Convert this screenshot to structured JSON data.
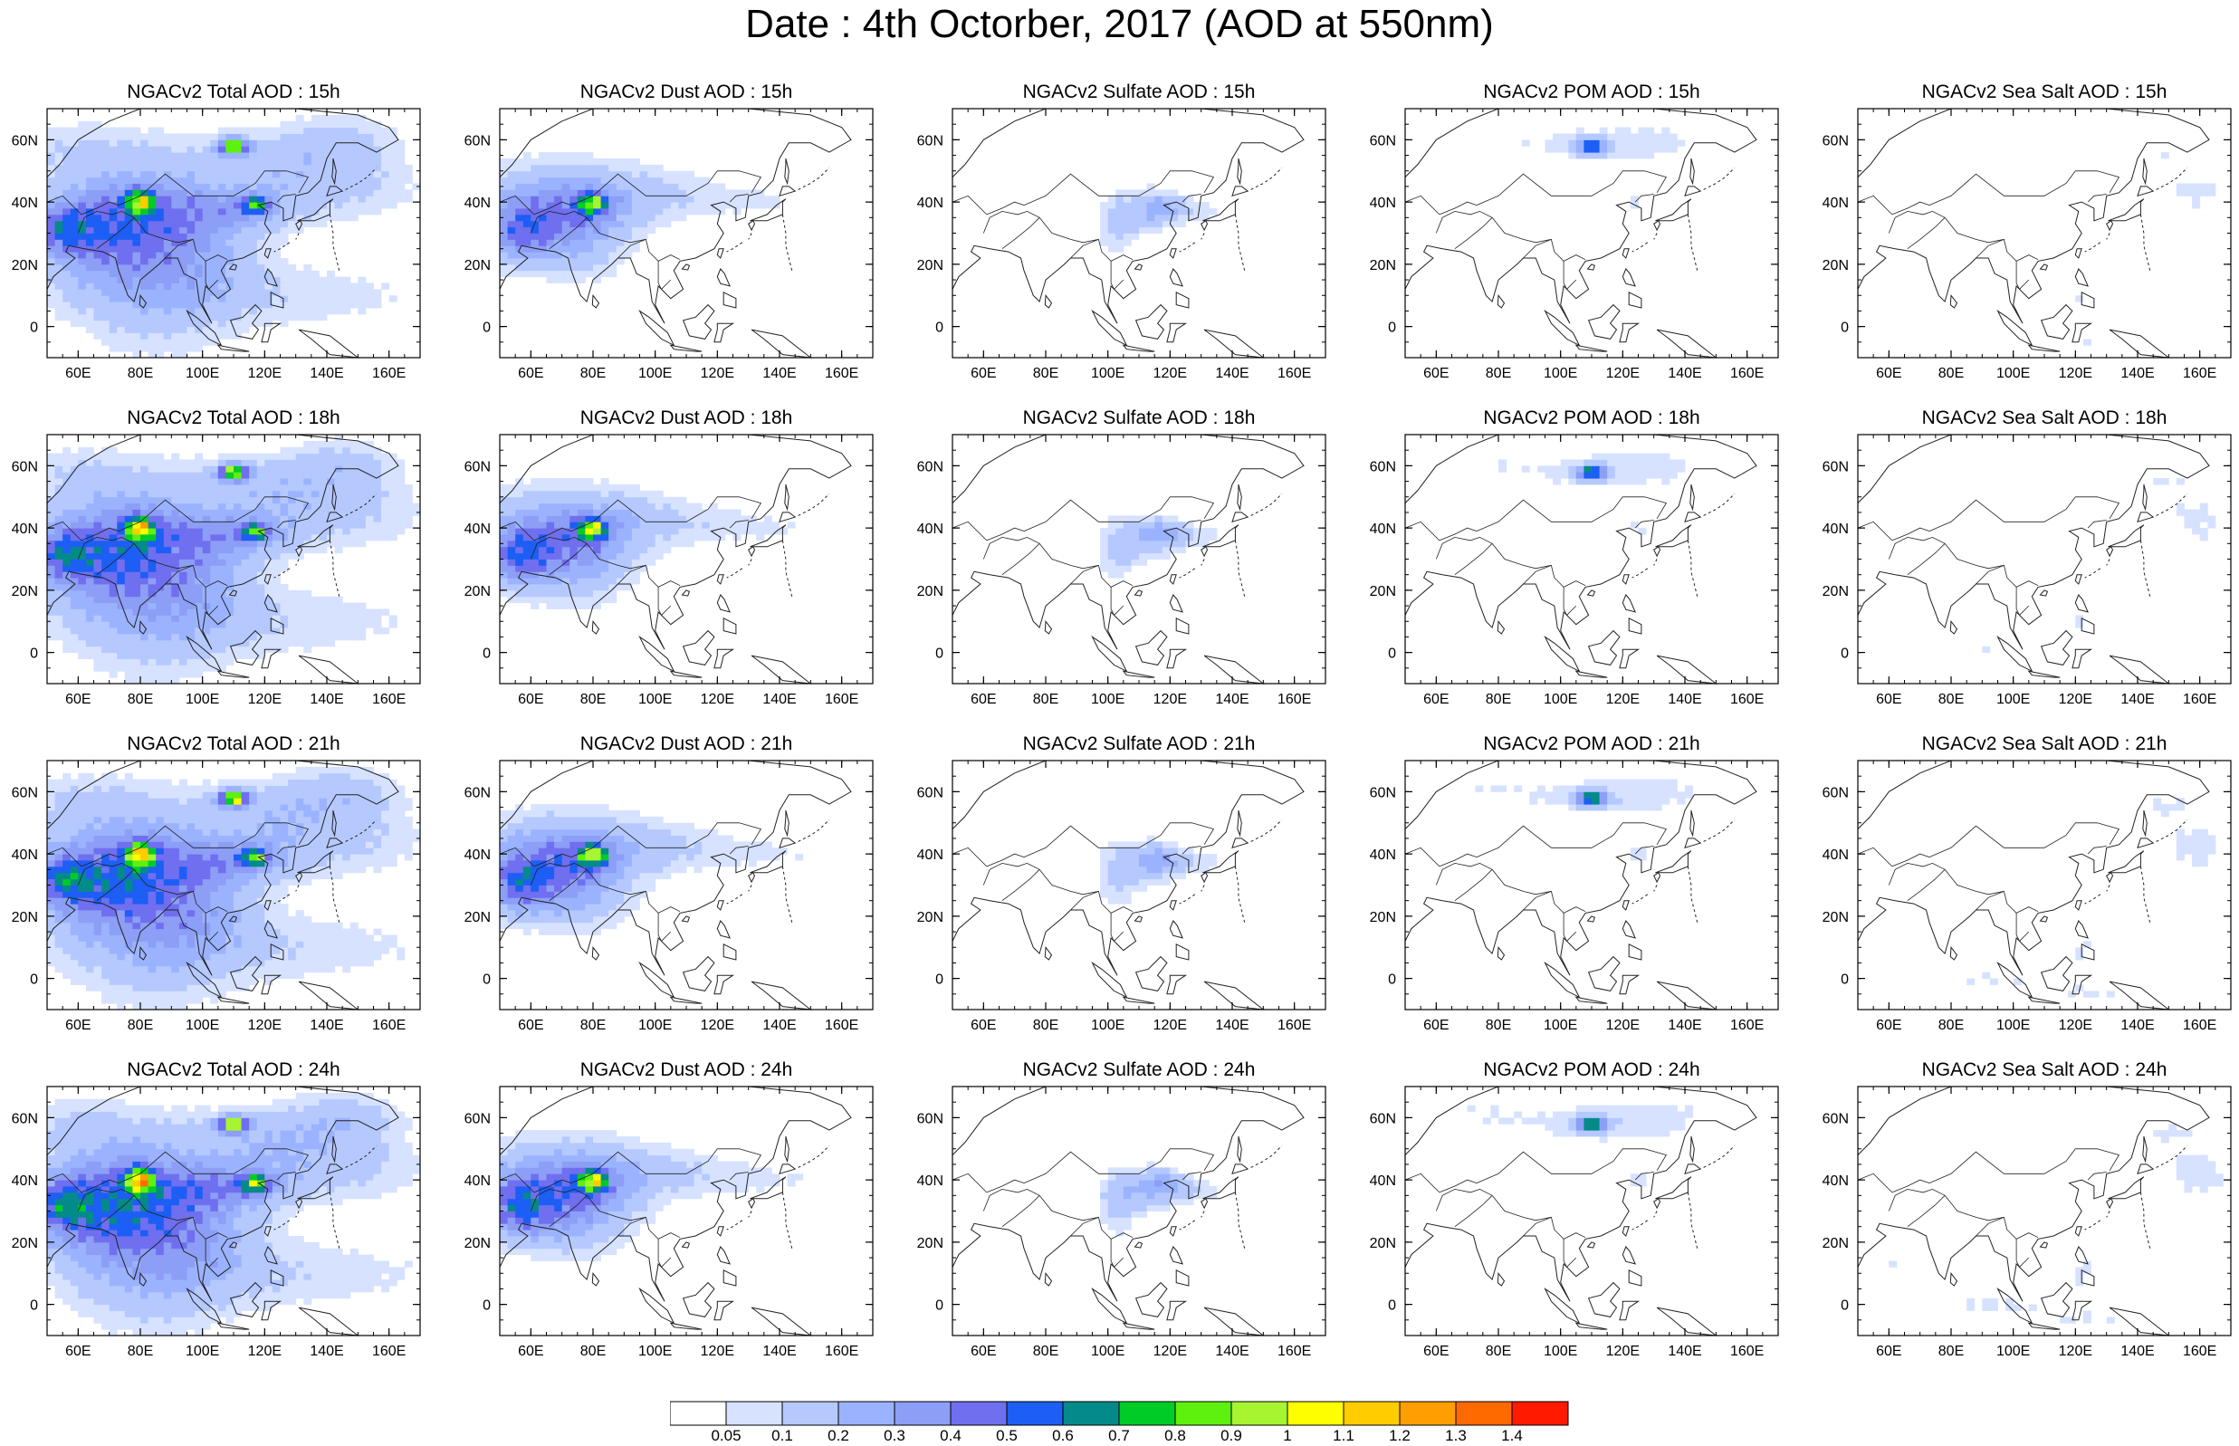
{
  "title": "Date : 4th Octorber, 2017 (AOD at 550nm)",
  "columns": [
    {
      "key": "total",
      "titles": [
        "NGACv2 Total AOD : 15h",
        "NGACv2 Total AOD : 18h",
        "NGACv2 Total AOD : 21h",
        "NGACv2 Total AOD : 24h"
      ]
    },
    {
      "key": "dust",
      "titles": [
        "NGACv2 Dust AOD : 15h",
        "NGACv2 Dust AOD : 18h",
        "NGACv2 Dust AOD : 21h",
        "NGACv2 Dust AOD : 24h"
      ]
    },
    {
      "key": "sulfate",
      "titles": [
        "NGACv2 Sulfate AOD : 15h",
        "NGACv2 Sulfate AOD : 18h",
        "NGACv2 Sulfate AOD : 21h",
        "NGACv2 Sulfate AOD : 24h"
      ]
    },
    {
      "key": "pom",
      "titles": [
        "NGACv2 POM AOD : 15h",
        "NGACv2 POM AOD : 18h",
        "NGACv2 POM AOD : 21h",
        "NGACv2 POM AOD : 24h"
      ]
    },
    {
      "key": "seasalt",
      "titles": [
        "NGACv2 Sea Salt AOD : 15h",
        "NGACv2 Sea Salt AOD : 18h",
        "NGACv2 Sea Salt AOD : 21h",
        "NGACv2 Sea Salt  AOD : 24h"
      ]
    }
  ],
  "map": {
    "lon_range": [
      50,
      170
    ],
    "lat_range": [
      -10,
      70
    ],
    "lon_ticks": [
      60,
      80,
      100,
      120,
      140,
      160
    ],
    "lon_tick_labels": [
      "60E",
      "80E",
      "100E",
      "120E",
      "140E",
      "160E"
    ],
    "lat_ticks": [
      0,
      20,
      40,
      60
    ],
    "lat_tick_labels": [
      "0",
      "20N",
      "40N",
      "60N"
    ]
  },
  "colorbar": {
    "labels": [
      "0.05",
      "0.1",
      "0.2",
      "0.3",
      "0.4",
      "0.5",
      "0.6",
      "0.7",
      "0.8",
      "0.9",
      "1",
      "1.1",
      "1.2",
      "1.3",
      "1.4"
    ],
    "colors": [
      "#ffffff",
      "#d6e2ff",
      "#b5c9ff",
      "#9bb3ff",
      "#8c9ef5",
      "#6f6ff0",
      "#1d5ef5",
      "#058a8a",
      "#00cc28",
      "#5ef00e",
      "#a6f530",
      "#fffe00",
      "#ffcc00",
      "#ff9e00",
      "#ff6a00",
      "#ff1a00"
    ]
  }
}
